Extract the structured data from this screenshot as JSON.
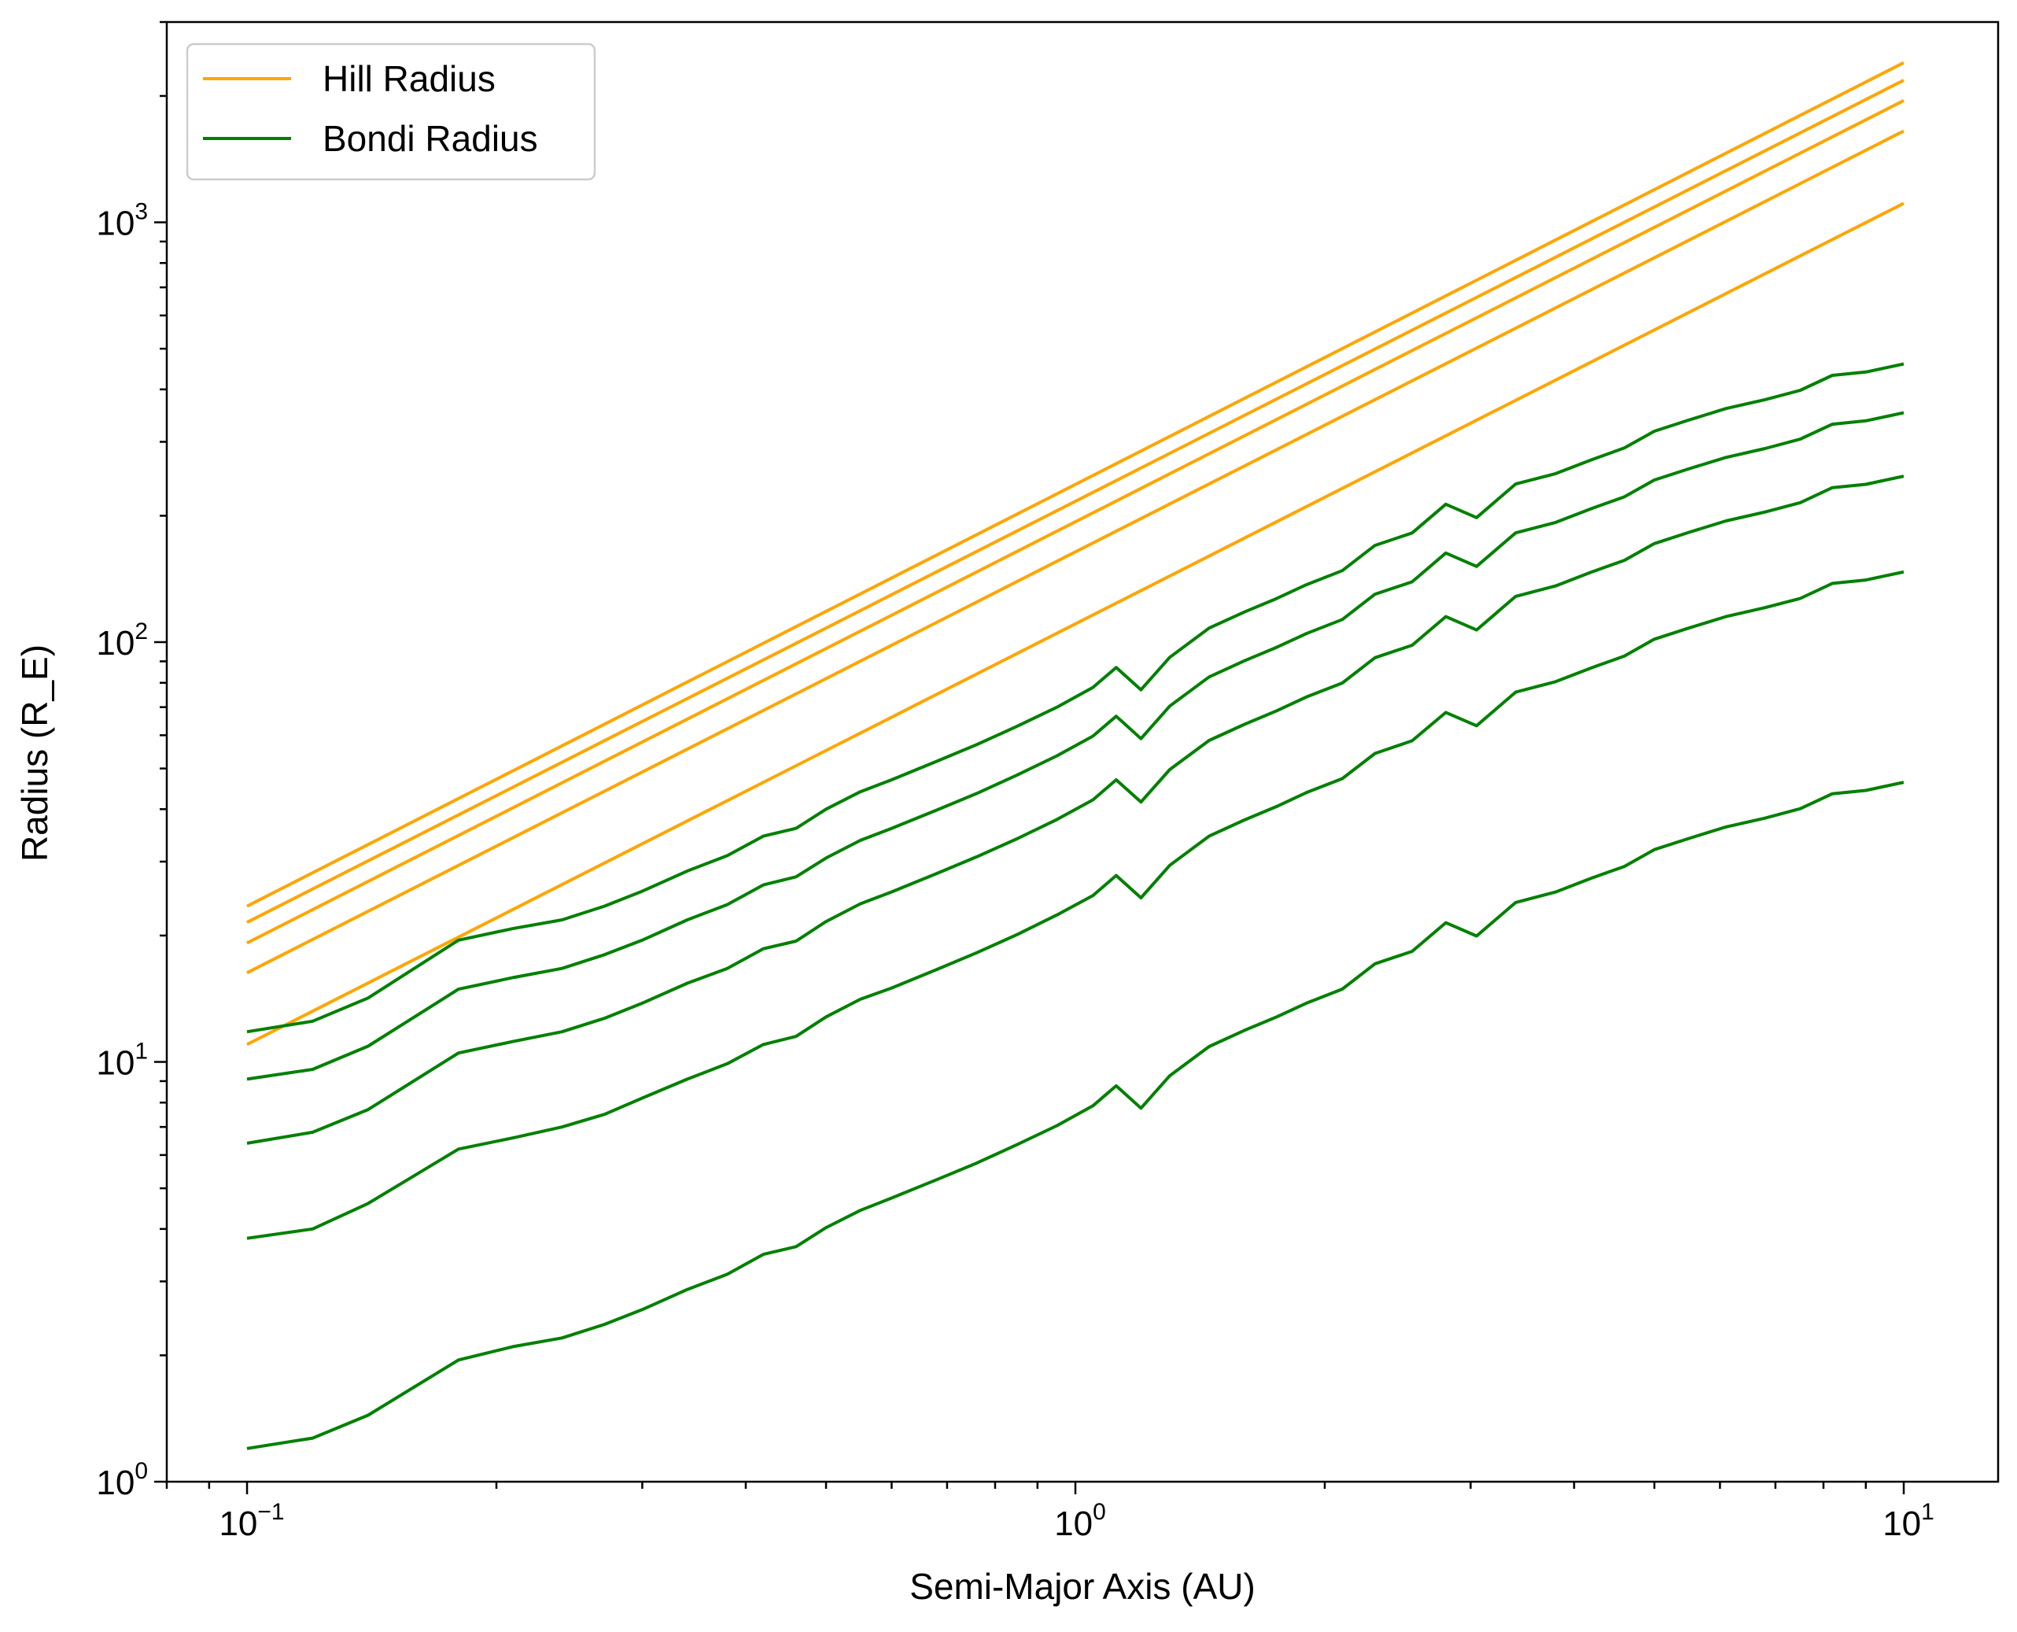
{
  "chart_data": {
    "type": "line",
    "title": "",
    "xlabel": "Semi-Major Axis (AU)",
    "ylabel": "Radius (R_E)",
    "xscale": "log",
    "yscale": "log",
    "xlim": [
      0.08,
      13
    ],
    "ylim": [
      1,
      3000
    ],
    "grid": false,
    "legend": {
      "placement": "top-left",
      "entries": [
        {
          "name": "Hill Radius",
          "color": "#FFA500"
        },
        {
          "name": "Bondi Radius",
          "color": "#008000"
        }
      ]
    },
    "x_ticks": [
      {
        "base": "10",
        "exp": "−1",
        "value": 0.1
      },
      {
        "base": "10",
        "exp": "0",
        "value": 1
      },
      {
        "base": "10",
        "exp": "1",
        "value": 10
      }
    ],
    "y_ticks": [
      {
        "base": "10",
        "exp": "0",
        "value": 1
      },
      {
        "base": "10",
        "exp": "1",
        "value": 10
      },
      {
        "base": "10",
        "exp": "2",
        "value": 100
      },
      {
        "base": "10",
        "exp": "3",
        "value": 1000
      }
    ],
    "series": [
      {
        "group": "Hill Radius",
        "color": "#FFA500",
        "x": [
          0.1,
          10
        ],
        "y": [
          23.5,
          2400
        ]
      },
      {
        "group": "Hill Radius",
        "color": "#FFA500",
        "x": [
          0.1,
          10
        ],
        "y": [
          21.5,
          2180
        ]
      },
      {
        "group": "Hill Radius",
        "color": "#FFA500",
        "x": [
          0.1,
          10
        ],
        "y": [
          19.2,
          1950
        ]
      },
      {
        "group": "Hill Radius",
        "color": "#FFA500",
        "x": [
          0.1,
          10
        ],
        "y": [
          16.3,
          1650
        ]
      },
      {
        "group": "Hill Radius",
        "color": "#FFA500",
        "x": [
          0.1,
          10
        ],
        "y": [
          11.0,
          1110
        ]
      },
      {
        "group": "Bondi Radius",
        "color": "#008000",
        "x": [
          0.1,
          0.12,
          0.14,
          0.18,
          0.21,
          0.24,
          0.27,
          0.3,
          0.34,
          0.38,
          0.42,
          0.46,
          0.5,
          0.55,
          0.6,
          0.68,
          0.76,
          0.85,
          0.95,
          1.05,
          1.12,
          1.2,
          1.3,
          1.45,
          1.6,
          1.75,
          1.9,
          2.1,
          2.3,
          2.55,
          2.8,
          3.05,
          3.4,
          3.8,
          4.2,
          4.6,
          5.0,
          5.5,
          6.1,
          6.8,
          7.5,
          8.2,
          9.0,
          10.0
        ],
        "y": [
          11.8,
          12.5,
          14.2,
          19.5,
          20.8,
          21.8,
          23.5,
          25.5,
          28.5,
          31.0,
          34.5,
          36.0,
          40.0,
          44.0,
          47.0,
          52.0,
          57.0,
          63.0,
          70.0,
          78.0,
          87.0,
          77.0,
          92.0,
          108.0,
          118.0,
          127.0,
          137.0,
          148.0,
          170.0,
          182.0,
          213.0,
          198.0,
          238.0,
          252.0,
          272.0,
          290.0,
          318.0,
          338.0,
          360.0,
          378.0,
          398.0,
          432.0,
          440.0,
          460.0
        ]
      },
      {
        "group": "Bondi Radius",
        "color": "#008000",
        "x": [
          0.1,
          0.12,
          0.14,
          0.18,
          0.21,
          0.24,
          0.27,
          0.3,
          0.34,
          0.38,
          0.42,
          0.46,
          0.5,
          0.55,
          0.6,
          0.68,
          0.76,
          0.85,
          0.95,
          1.05,
          1.12,
          1.2,
          1.3,
          1.45,
          1.6,
          1.75,
          1.9,
          2.1,
          2.3,
          2.55,
          2.8,
          3.05,
          3.4,
          3.8,
          4.2,
          4.6,
          5.0,
          5.5,
          6.1,
          6.8,
          7.5,
          8.2,
          9.0,
          10.0
        ],
        "y": [
          9.1,
          9.6,
          10.9,
          14.9,
          15.9,
          16.7,
          18.0,
          19.5,
          21.8,
          23.7,
          26.4,
          27.6,
          30.6,
          33.7,
          36.0,
          39.8,
          43.6,
          48.2,
          53.6,
          59.7,
          66.6,
          58.9,
          70.4,
          82.6,
          90.3,
          97.2,
          104.8,
          113.2,
          130.1,
          139.2,
          163.0,
          151.5,
          182.1,
          192.8,
          208.1,
          221.9,
          243.3,
          258.6,
          275.4,
          289.2,
          304.5,
          330.5,
          336.6,
          352.0
        ]
      },
      {
        "group": "Bondi Radius",
        "color": "#008000",
        "x": [
          0.1,
          0.12,
          0.14,
          0.18,
          0.21,
          0.24,
          0.27,
          0.3,
          0.34,
          0.38,
          0.42,
          0.46,
          0.5,
          0.55,
          0.6,
          0.68,
          0.76,
          0.85,
          0.95,
          1.05,
          1.12,
          1.2,
          1.3,
          1.45,
          1.6,
          1.75,
          1.9,
          2.1,
          2.3,
          2.55,
          2.8,
          3.05,
          3.4,
          3.8,
          4.2,
          4.6,
          5.0,
          5.5,
          6.1,
          6.8,
          7.5,
          8.2,
          9.0,
          10.0
        ],
        "y": [
          6.4,
          6.8,
          7.7,
          10.5,
          11.2,
          11.8,
          12.7,
          13.8,
          15.4,
          16.7,
          18.6,
          19.4,
          21.6,
          23.8,
          25.4,
          28.1,
          30.8,
          34.0,
          37.8,
          42.1,
          47.0,
          41.6,
          49.7,
          58.3,
          63.7,
          68.6,
          74.0,
          79.9,
          91.8,
          98.3,
          115.0,
          106.9,
          128.5,
          136.1,
          146.9,
          156.6,
          171.7,
          182.5,
          194.4,
          204.1,
          214.9,
          233.3,
          237.6,
          248.4
        ]
      },
      {
        "group": "Bondi Radius",
        "color": "#008000",
        "x": [
          0.1,
          0.12,
          0.14,
          0.18,
          0.21,
          0.24,
          0.27,
          0.3,
          0.34,
          0.38,
          0.42,
          0.46,
          0.5,
          0.55,
          0.6,
          0.68,
          0.76,
          0.85,
          0.95,
          1.05,
          1.12,
          1.2,
          1.3,
          1.45,
          1.6,
          1.75,
          1.9,
          2.1,
          2.3,
          2.55,
          2.8,
          3.05,
          3.4,
          3.8,
          4.2,
          4.6,
          5.0,
          5.5,
          6.1,
          6.8,
          7.5,
          8.2,
          9.0,
          10.0
        ],
        "y": [
          3.8,
          4.0,
          4.6,
          6.2,
          6.6,
          7.0,
          7.5,
          8.2,
          9.1,
          9.9,
          11.0,
          11.5,
          12.8,
          14.1,
          15.0,
          16.6,
          18.2,
          20.1,
          22.4,
          24.9,
          27.8,
          24.6,
          29.4,
          34.5,
          37.7,
          40.6,
          43.8,
          47.3,
          54.3,
          58.2,
          68.0,
          63.2,
          76.0,
          80.5,
          86.9,
          92.6,
          101.6,
          108.0,
          115.0,
          120.8,
          127.1,
          138.0,
          140.6,
          147.0
        ]
      },
      {
        "group": "Bondi Radius",
        "color": "#008000",
        "x": [
          0.1,
          0.12,
          0.14,
          0.18,
          0.21,
          0.24,
          0.27,
          0.3,
          0.34,
          0.38,
          0.42,
          0.46,
          0.5,
          0.55,
          0.6,
          0.68,
          0.76,
          0.85,
          0.95,
          1.05,
          1.12,
          1.2,
          1.3,
          1.45,
          1.6,
          1.75,
          1.9,
          2.1,
          2.3,
          2.55,
          2.8,
          3.05,
          3.4,
          3.8,
          4.2,
          4.6,
          5.0,
          5.5,
          6.1,
          6.8,
          7.5,
          8.2,
          9.0,
          10.0
        ],
        "y": [
          1.2,
          1.27,
          1.44,
          1.95,
          2.1,
          2.2,
          2.37,
          2.57,
          2.87,
          3.12,
          3.48,
          3.63,
          4.03,
          4.43,
          4.74,
          5.24,
          5.74,
          6.35,
          7.05,
          7.86,
          8.77,
          7.76,
          9.27,
          10.88,
          11.89,
          12.8,
          13.8,
          14.91,
          17.13,
          18.34,
          21.46,
          19.95,
          23.98,
          25.39,
          27.41,
          29.22,
          32.04,
          34.06,
          36.28,
          38.09,
          40.1,
          43.53,
          44.34,
          46.35
        ]
      }
    ]
  }
}
